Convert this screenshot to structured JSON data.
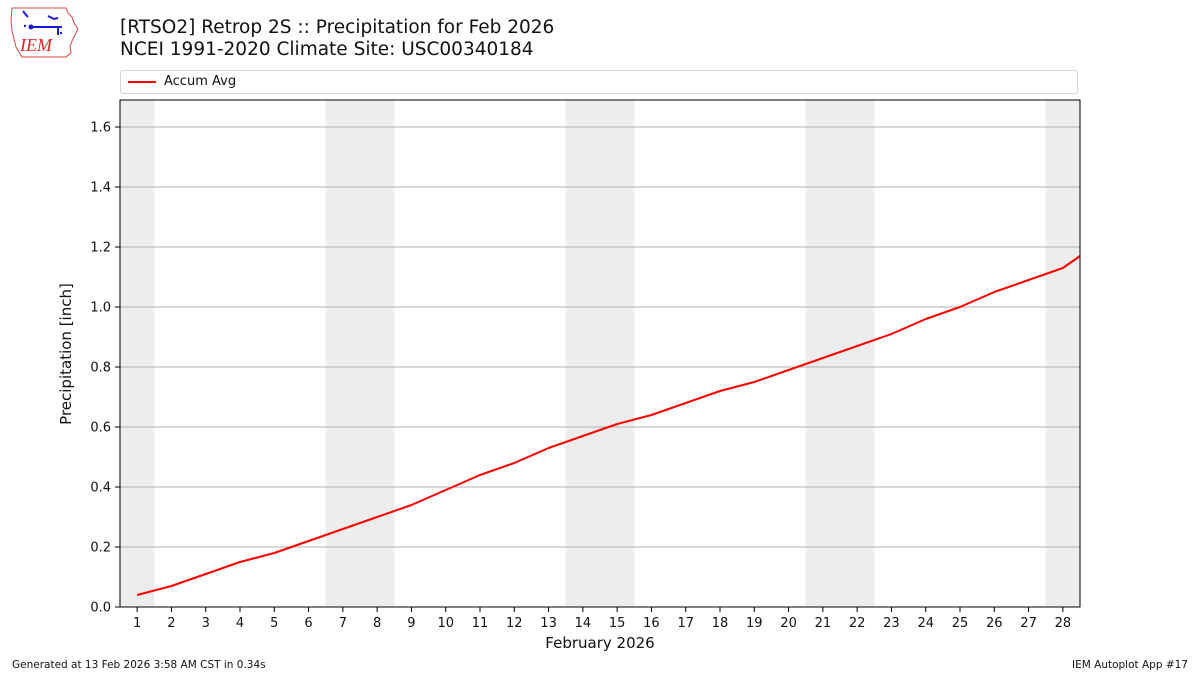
{
  "header": {
    "logo_text": "IEM",
    "title_line1": "[RTSO2] Retrop 2S :: Precipitation for Feb 2026",
    "title_line2": "NCEI 1991-2020 Climate Site: USC00340184"
  },
  "legend": {
    "items": [
      {
        "label": "Accum Avg",
        "color": "#ff0000"
      }
    ]
  },
  "footer": {
    "generated": "Generated at 13 Feb 2026 3:58 AM CST in 0.34s",
    "app": "IEM Autoplot App #17"
  },
  "colors": {
    "line": "#ff0000",
    "weekend_band": "#ededed",
    "grid": "#b0b0b0",
    "axis": "#000000"
  },
  "chart_data": {
    "type": "line",
    "title": "[RTSO2] Retrop 2S :: Precipitation for Feb 2026",
    "subtitle": "NCEI 1991-2020 Climate Site: USC00340184",
    "xlabel": "February 2026",
    "ylabel": "Precipitation [inch]",
    "x": [
      1,
      2,
      3,
      4,
      5,
      6,
      7,
      8,
      9,
      10,
      11,
      12,
      13,
      14,
      15,
      16,
      17,
      18,
      19,
      20,
      21,
      22,
      23,
      24,
      25,
      26,
      27,
      28
    ],
    "series": [
      {
        "name": "Accum Avg",
        "color": "#ff0000",
        "values": [
          0.04,
          0.07,
          0.11,
          0.15,
          0.18,
          0.22,
          0.26,
          0.3,
          0.34,
          0.39,
          0.44,
          0.48,
          0.53,
          0.57,
          0.61,
          0.64,
          0.68,
          0.72,
          0.75,
          0.79,
          0.83,
          0.87,
          0.91,
          0.96,
          1.0,
          1.05,
          1.09,
          1.13
        ],
        "extends_to_right_edge": 1.17
      }
    ],
    "xlim": [
      0.5,
      28.5
    ],
    "ylim": [
      0.0,
      1.69
    ],
    "yticks": [
      0.0,
      0.2,
      0.4,
      0.6,
      0.8,
      1.0,
      1.2,
      1.4,
      1.6
    ],
    "ytick_labels": [
      "0.0",
      "0.2",
      "0.4",
      "0.6",
      "0.8",
      "1.0",
      "1.2",
      "1.4",
      "1.6"
    ],
    "xticks": [
      1,
      2,
      3,
      4,
      5,
      6,
      7,
      8,
      9,
      10,
      11,
      12,
      13,
      14,
      15,
      16,
      17,
      18,
      19,
      20,
      21,
      22,
      23,
      24,
      25,
      26,
      27,
      28
    ],
    "shaded_bands": [
      [
        0.5,
        1.5
      ],
      [
        6.5,
        8.5
      ],
      [
        13.5,
        15.5
      ],
      [
        20.5,
        22.5
      ],
      [
        27.5,
        28.5
      ]
    ],
    "shaded_bands_meaning": "weekends",
    "grid": "horizontal",
    "legend_position": "top"
  }
}
